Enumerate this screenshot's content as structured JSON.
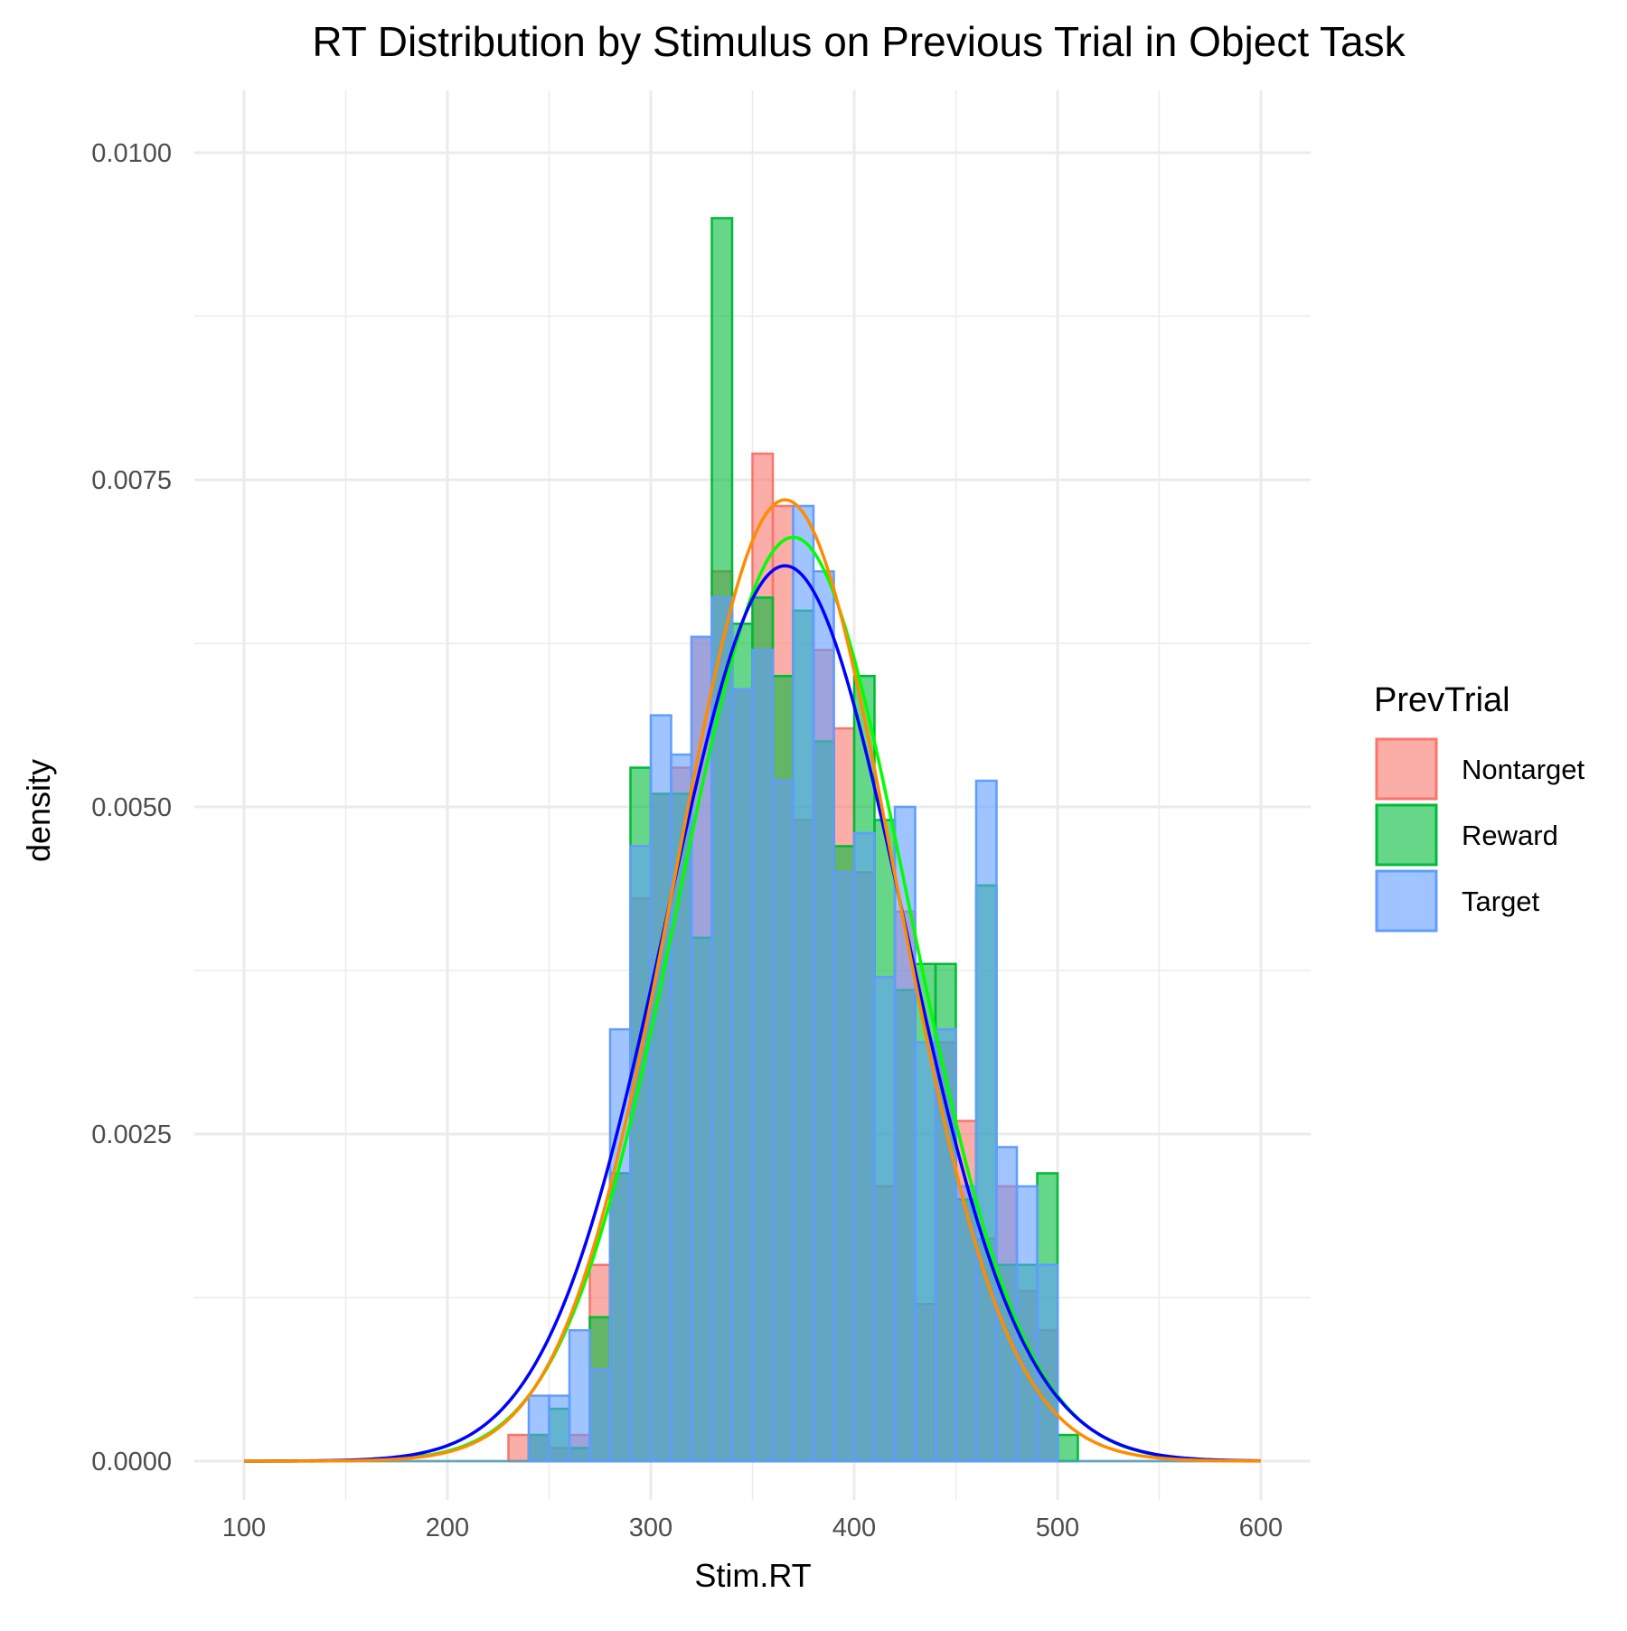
{
  "chart_data": {
    "type": "histogram",
    "title": "RT Distribution by Stimulus on Previous Trial in Object Task",
    "xlabel": "Stim.RT",
    "ylabel": "density",
    "xlim": [
      100,
      600
    ],
    "ylim": [
      0,
      0.0105
    ],
    "x_ticks": [
      100,
      200,
      300,
      400,
      500,
      600
    ],
    "y_ticks": [
      0,
      0.0025,
      0.005,
      0.0075,
      0.01
    ],
    "y_tick_labels": [
      "0.0000",
      "0.0025",
      "0.0050",
      "0.0075",
      "0.0100"
    ],
    "grid": true,
    "legend": {
      "title": "PrevTrial",
      "position": "right",
      "entries": [
        "Nontarget",
        "Reward",
        "Target"
      ]
    },
    "bin_width": 10,
    "series": [
      {
        "name": "Nontarget",
        "fill": "#F8766D",
        "stroke": "#F8766D",
        "bins_start": [
          230,
          240,
          250,
          260,
          270,
          280,
          290,
          300,
          310,
          320,
          330,
          340,
          350,
          360,
          370,
          380,
          390,
          400,
          410,
          420,
          430,
          440,
          450,
          460,
          470,
          480,
          490
        ],
        "values": [
          0.0002,
          0.0002,
          0.0001,
          0.0002,
          0.0015,
          0.0022,
          0.0043,
          0.0051,
          0.0053,
          0.0063,
          0.0068,
          0.0059,
          0.0077,
          0.0073,
          0.0049,
          0.0062,
          0.0056,
          0.0045,
          0.0021,
          0.0042,
          0.0012,
          0.0032,
          0.0026,
          0.0017,
          0.0021,
          0.0013,
          0.001
        ]
      },
      {
        "name": "Reward",
        "fill": "#00BA38",
        "stroke": "#00BA38",
        "bins_start": [
          240,
          250,
          260,
          270,
          280,
          290,
          300,
          310,
          320,
          330,
          340,
          350,
          360,
          370,
          380,
          390,
          400,
          410,
          420,
          430,
          440,
          450,
          460,
          470,
          480,
          490,
          500
        ],
        "values": [
          0.0002,
          0.0004,
          0.0001,
          0.0011,
          0.0022,
          0.0053,
          0.0051,
          0.0051,
          0.004,
          0.0095,
          0.0064,
          0.0066,
          0.006,
          0.0065,
          0.0055,
          0.0047,
          0.006,
          0.0049,
          0.0036,
          0.0038,
          0.0038,
          0.002,
          0.0044,
          0.0015,
          0.0015,
          0.0022,
          0.0002
        ]
      },
      {
        "name": "Target",
        "fill": "#619CFF",
        "stroke": "#619CFF",
        "bins_start": [
          240,
          250,
          260,
          270,
          280,
          290,
          300,
          310,
          320,
          330,
          340,
          350,
          360,
          370,
          380,
          390,
          400,
          410,
          420,
          430,
          440,
          450,
          460,
          470,
          480,
          490
        ],
        "values": [
          0.0005,
          0.0005,
          0.001,
          0.0007,
          0.0033,
          0.0047,
          0.0057,
          0.0054,
          0.0063,
          0.0066,
          0.0059,
          0.0062,
          0.0052,
          0.0073,
          0.0068,
          0.0045,
          0.0048,
          0.0037,
          0.005,
          0.0032,
          0.0033,
          0.0021,
          0.0052,
          0.0024,
          0.0021,
          0.0015
        ]
      }
    ],
    "density_curves": [
      {
        "color": "#00FF00",
        "mean": 370,
        "sd": 56.5
      },
      {
        "color": "#0000FF",
        "mean": 366,
        "sd": 58.3
      },
      {
        "color": "#FF8C00",
        "mean": 366,
        "sd": 54.3
      }
    ]
  }
}
